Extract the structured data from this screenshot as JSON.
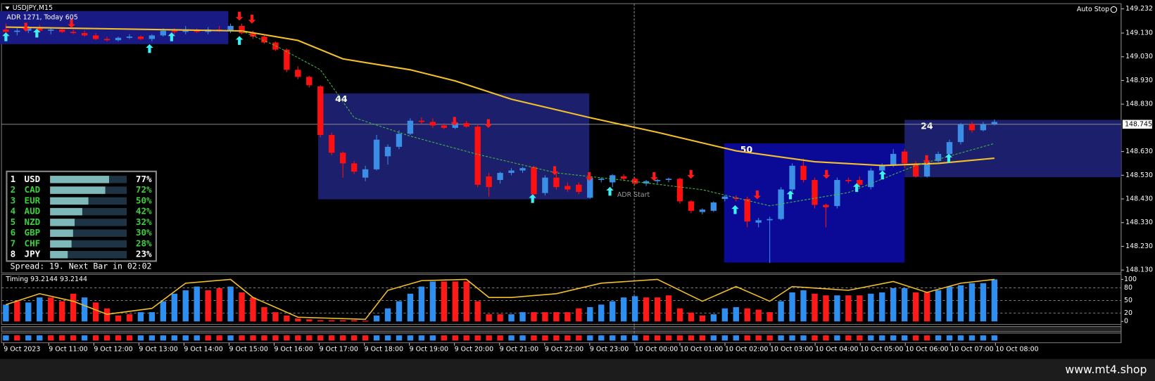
{
  "window": {
    "symbol": "USDJPY,M15",
    "adr_info": "ADR 1271, Today 605",
    "auto_stop": "Auto Stop",
    "adr_start": "ADR Start",
    "spread": "Spread: 19. Next Bar in 02:02",
    "footer": "www.mt4.shop"
  },
  "chart_data": [
    {
      "type": "candlestick",
      "open": [
        149.145,
        149.135,
        149.14,
        149.15,
        149.14,
        149.145,
        149.135,
        149.13,
        149.12,
        149.105,
        149.1,
        149.11,
        149.115,
        149.105,
        149.12,
        149.14,
        149.135,
        149.14,
        149.135,
        149.145,
        149.14,
        149.16,
        149.13,
        149.115,
        149.09,
        149.06,
        148.975,
        148.945,
        148.905,
        148.7,
        148.625,
        148.58,
        148.52,
        148.555,
        148.61,
        148.65,
        148.705,
        148.76,
        148.755,
        148.74,
        148.73,
        148.75,
        148.735,
        148.525,
        148.51,
        148.54,
        148.55,
        148.565,
        148.455,
        148.52,
        148.485,
        148.49,
        148.435,
        148.51,
        148.5,
        148.525,
        148.515,
        148.495,
        148.505,
        148.51,
        148.515,
        148.42,
        148.375,
        148.38,
        148.43,
        148.435,
        148.43,
        148.33,
        148.34,
        148.345,
        148.47,
        148.57,
        148.51,
        148.405,
        148.4,
        148.51,
        148.51,
        148.48,
        148.55,
        148.57,
        148.63,
        148.58,
        148.525,
        148.59,
        148.62,
        148.67,
        148.745,
        148.72,
        148.745
      ],
      "high": [
        149.17,
        149.15,
        149.16,
        149.165,
        149.15,
        149.155,
        149.145,
        149.14,
        149.13,
        149.115,
        149.115,
        149.125,
        149.12,
        149.125,
        149.15,
        149.15,
        149.16,
        149.15,
        149.155,
        149.16,
        149.17,
        149.17,
        149.14,
        149.12,
        149.095,
        149.065,
        148.99,
        148.95,
        148.91,
        148.71,
        148.63,
        148.59,
        148.57,
        148.7,
        148.66,
        148.72,
        148.77,
        148.775,
        148.77,
        148.75,
        148.76,
        148.76,
        148.745,
        148.54,
        148.545,
        148.56,
        148.565,
        148.57,
        148.53,
        148.54,
        148.5,
        148.5,
        148.53,
        148.52,
        148.535,
        148.535,
        148.52,
        148.51,
        148.515,
        148.52,
        148.52,
        148.425,
        148.39,
        148.42,
        148.445,
        148.445,
        148.44,
        148.35,
        148.355,
        148.48,
        148.58,
        148.6,
        148.52,
        148.41,
        148.52,
        148.52,
        148.525,
        148.56,
        148.58,
        148.64,
        148.64,
        148.59,
        148.595,
        148.63,
        148.68,
        148.75,
        148.755,
        148.755,
        148.765
      ],
      "low": [
        149.11,
        149.12,
        149.13,
        149.135,
        149.125,
        149.13,
        149.125,
        149.115,
        149.1,
        149.095,
        149.095,
        149.105,
        149.1,
        149.095,
        149.115,
        149.125,
        149.125,
        149.13,
        149.125,
        149.135,
        149.13,
        149.125,
        149.105,
        149.085,
        149.055,
        148.965,
        148.935,
        148.9,
        148.69,
        148.615,
        148.52,
        148.535,
        148.505,
        148.55,
        148.575,
        148.64,
        148.7,
        148.745,
        148.73,
        148.725,
        148.725,
        148.73,
        148.48,
        148.44,
        148.495,
        148.53,
        148.54,
        148.43,
        148.445,
        148.47,
        148.46,
        148.45,
        148.43,
        148.5,
        148.48,
        148.505,
        148.49,
        148.485,
        148.495,
        148.5,
        148.41,
        148.37,
        148.365,
        148.375,
        148.42,
        148.42,
        148.31,
        148.31,
        148.16,
        148.34,
        148.46,
        148.5,
        148.39,
        148.31,
        148.39,
        148.495,
        148.48,
        148.47,
        148.54,
        148.565,
        148.56,
        148.52,
        148.52,
        148.585,
        148.61,
        148.66,
        148.71,
        148.715,
        148.74
      ],
      "close": [
        149.135,
        149.14,
        149.15,
        149.14,
        149.145,
        149.135,
        149.13,
        149.12,
        149.105,
        149.1,
        149.11,
        149.115,
        149.105,
        149.12,
        149.14,
        149.135,
        149.14,
        149.135,
        149.145,
        149.14,
        149.16,
        149.13,
        149.115,
        149.09,
        149.06,
        148.975,
        148.945,
        148.91,
        148.7,
        148.625,
        148.58,
        148.545,
        148.555,
        148.68,
        148.65,
        148.705,
        148.76,
        148.755,
        148.74,
        148.73,
        148.75,
        148.735,
        148.49,
        148.48,
        148.54,
        148.55,
        148.56,
        148.45,
        148.52,
        148.48,
        148.47,
        148.46,
        148.52,
        148.515,
        148.53,
        148.515,
        148.495,
        148.505,
        148.51,
        148.515,
        148.42,
        148.38,
        148.385,
        148.415,
        148.44,
        148.43,
        148.335,
        148.34,
        148.345,
        148.47,
        148.57,
        148.51,
        148.405,
        148.395,
        148.51,
        148.505,
        148.49,
        148.55,
        148.57,
        148.62,
        148.58,
        148.525,
        148.585,
        148.62,
        148.67,
        148.745,
        148.72,
        148.745,
        148.755
      ],
      "up_color": "#3a8ee6",
      "down_color": "#ff1010",
      "ma_slow": {
        "color": "#f2c02a",
        "x": [
          0,
          21,
          26,
          30,
          36,
          40,
          45,
          52,
          58,
          65,
          72,
          78,
          83,
          88
        ],
        "values": [
          149.155,
          149.139,
          149.099,
          149.021,
          148.975,
          148.928,
          148.851,
          148.773,
          148.711,
          148.633,
          148.587,
          148.571,
          148.58,
          148.602
        ]
      },
      "ma_fast": {
        "color": "#3fbf3f",
        "x": [
          21,
          24,
          28,
          31,
          36,
          42,
          49,
          55,
          62,
          68,
          75,
          81,
          88
        ],
        "values": [
          149.139,
          149.077,
          148.975,
          148.773,
          148.695,
          148.618,
          148.54,
          148.509,
          148.469,
          148.401,
          148.457,
          148.571,
          148.664
        ]
      },
      "box_labels": [
        44,
        50,
        24
      ],
      "current_price": {
        "value": 148.745,
        "label": "148.745"
      },
      "ylim": [
        148.118,
        149.254
      ],
      "yticks": [
        {
          "value": 149.232,
          "label": "149.232"
        },
        {
          "value": 149.13,
          "label": "149.130"
        },
        {
          "value": 149.03,
          "label": "149.030"
        },
        {
          "value": 148.93,
          "label": "148.930"
        },
        {
          "value": 148.83,
          "label": "148.830"
        },
        {
          "value": 148.63,
          "label": "148.630"
        },
        {
          "value": 148.53,
          "label": "148.530"
        },
        {
          "value": 148.43,
          "label": "148.430"
        },
        {
          "value": 148.33,
          "label": "148.330"
        },
        {
          "value": 148.23,
          "label": "148.230"
        },
        {
          "value": 148.13,
          "label": "148.130"
        }
      ]
    },
    {
      "type": "bar",
      "title": "Timing 93.2144 93.2144",
      "values": [
        40,
        48,
        45,
        57,
        57,
        48,
        66,
        57,
        45,
        31,
        14,
        17,
        22,
        22,
        48,
        66,
        74,
        83,
        74,
        79,
        83,
        69,
        57,
        34,
        22,
        14,
        7,
        5,
        3,
        3,
        3,
        3,
        2,
        14,
        31,
        48,
        66,
        83,
        95,
        95,
        95,
        95,
        48,
        17,
        17,
        17,
        22,
        22,
        22,
        22,
        22,
        31,
        34,
        40,
        48,
        57,
        60,
        57,
        57,
        62,
        31,
        21,
        14,
        17,
        31,
        34,
        31,
        28,
        22,
        48,
        69,
        74,
        66,
        62,
        62,
        62,
        62,
        66,
        69,
        79,
        79,
        69,
        69,
        74,
        83,
        86,
        91,
        91,
        100
      ],
      "sides": [
        "up",
        "down",
        "up",
        "up",
        "down",
        "down",
        "down",
        "up",
        "down",
        "down",
        "down",
        "down",
        "up",
        "up",
        "up",
        "up",
        "up",
        "up",
        "down",
        "down",
        "up",
        "down",
        "down",
        "down",
        "down",
        "down",
        "down",
        "down",
        "down",
        "down",
        "down",
        "down",
        "down",
        "up",
        "up",
        "up",
        "up",
        "up",
        "up",
        "down",
        "down",
        "down",
        "down",
        "down",
        "down",
        "up",
        "up",
        "down",
        "down",
        "down",
        "down",
        "down",
        "up",
        "up",
        "up",
        "up",
        "up",
        "down",
        "down",
        "down",
        "down",
        "down",
        "down",
        "up",
        "up",
        "up",
        "down",
        "down",
        "down",
        "up",
        "up",
        "up",
        "down",
        "down",
        "up",
        "down",
        "down",
        "up",
        "up",
        "up",
        "up",
        "down",
        "down",
        "up",
        "up",
        "up",
        "up",
        "up",
        "up"
      ],
      "colors": {
        "up": "#2f8ff0",
        "down": "#ff1a1a"
      },
      "line": {
        "color": "#f2c02a",
        "x": [
          0,
          3,
          6,
          9,
          13,
          16,
          20,
          22,
          26,
          32,
          34,
          37,
          41,
          43,
          45,
          49,
          53,
          58,
          62,
          65,
          68,
          70,
          75,
          79,
          82,
          85,
          88
        ],
        "values": [
          40,
          66,
          48,
          17,
          31,
          91,
          100,
          57,
          10,
          5,
          74,
          97,
          100,
          57,
          57,
          66,
          91,
          100,
          48,
          83,
          48,
          83,
          74,
          95,
          69,
          91,
          100
        ]
      },
      "ylim": [
        -7,
        112
      ],
      "yticks": [
        100,
        80,
        50,
        20,
        0
      ]
    }
  ],
  "time_axis": {
    "labels": [
      "9 Oct 2023",
      "9 Oct 11:00",
      "9 Oct 12:00",
      "9 Oct 13:00",
      "9 Oct 14:00",
      "9 Oct 15:00",
      "9 Oct 16:00",
      "9 Oct 17:00",
      "9 Oct 18:00",
      "9 Oct 19:00",
      "9 Oct 20:00",
      "9 Oct 21:00",
      "9 Oct 22:00",
      "9 Oct 23:00",
      "10 Oct 00:00",
      "10 Oct 01:00",
      "10 Oct 02:00",
      "10 Oct 03:00",
      "10 Oct 04:00",
      "10 Oct 05:00",
      "10 Oct 06:00",
      "10 Oct 07:00",
      "10 Oct 08:00"
    ]
  },
  "currency_strength": {
    "ranks": [
      1,
      2,
      3,
      4,
      5,
      6,
      7,
      8
    ],
    "currencies": [
      "USD",
      "CAD",
      "EUR",
      "AUD",
      "NZD",
      "GBP",
      "CHF",
      "JPY"
    ],
    "values": [
      77,
      72,
      50,
      42,
      32,
      30,
      28,
      23
    ],
    "value_labels": [
      "77%",
      "72%",
      "50%",
      "42%",
      "32%",
      "30%",
      "28%",
      "23%"
    ],
    "colors": [
      "#ffffff",
      "#3ecf3e",
      "#3ecf3e",
      "#3ecf3e",
      "#3ecf3e",
      "#3ecf3e",
      "#3ecf3e",
      "#ffffff"
    ]
  }
}
